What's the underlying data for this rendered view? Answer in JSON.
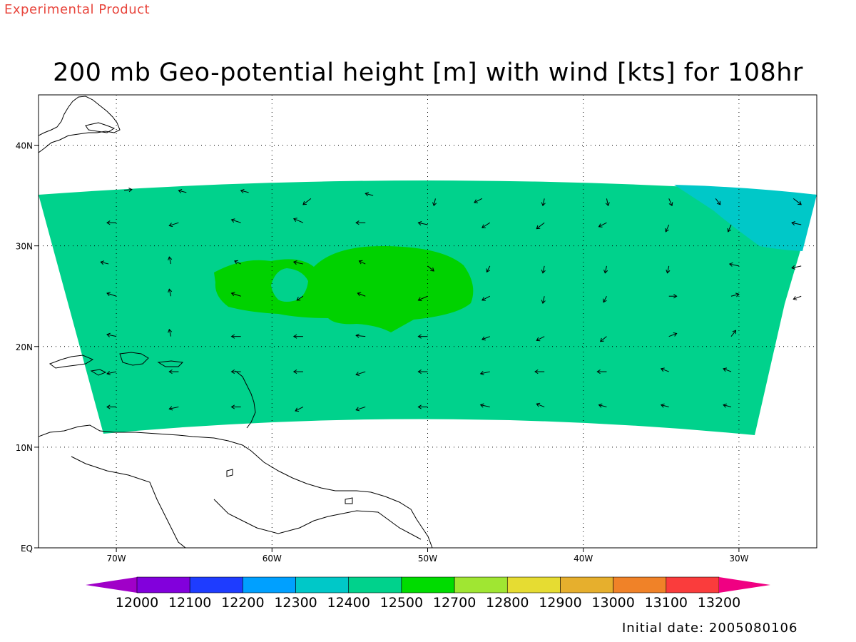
{
  "header": {
    "product_label": "Experimental Product",
    "title": "200 mb Geo-potential height [m] with wind [kts] for 108hr"
  },
  "footer": {
    "initial_date": "Initial date: 2005080106"
  },
  "map": {
    "lon_range": [
      -75,
      -25
    ],
    "lat_range": [
      0,
      45
    ],
    "lon_ticks": [
      {
        "value": -70,
        "label": "70W"
      },
      {
        "value": -60,
        "label": "60W"
      },
      {
        "value": -50,
        "label": "50W"
      },
      {
        "value": -40,
        "label": "40W"
      },
      {
        "value": -30,
        "label": "30W"
      }
    ],
    "lat_ticks": [
      {
        "value": 0,
        "label": "EQ"
      },
      {
        "value": 10,
        "label": "10N"
      },
      {
        "value": 20,
        "label": "20N"
      },
      {
        "value": 30,
        "label": "30N"
      },
      {
        "value": 40,
        "label": "40N"
      }
    ],
    "grid": true,
    "colors": {
      "domain_fill": "#00d28c",
      "high_fill": "#00d200",
      "ne_fill": "#00c8c8",
      "coast": "#000000"
    }
  },
  "colorbar": {
    "colors": [
      "#a000c8",
      "#8200dc",
      "#1e3cff",
      "#00a0ff",
      "#00c8c8",
      "#00d28c",
      "#00dc00",
      "#a0e632",
      "#e6dc32",
      "#e6af2d",
      "#f08228",
      "#fa3c3c",
      "#f00082"
    ],
    "labels": [
      "12000",
      "12100",
      "12200",
      "12300",
      "12400",
      "12500",
      "12700",
      "12800",
      "12900",
      "13000",
      "13100",
      "13200"
    ]
  },
  "wind": [
    [
      -69.5,
      35.5,
      -69,
      35.6
    ],
    [
      -65.5,
      35.3,
      -66,
      35.5
    ],
    [
      -61.5,
      35.3,
      -62,
      35.5
    ],
    [
      -57.5,
      34.7,
      -58,
      34.1
    ],
    [
      -53.5,
      35.0,
      -54,
      35.2
    ],
    [
      -49.5,
      34.7,
      -49.6,
      34.0
    ],
    [
      -46.5,
      34.7,
      -47,
      34.3
    ],
    [
      -42.5,
      34.7,
      -42.6,
      34.0
    ],
    [
      -38.5,
      34.7,
      -38.4,
      34.0
    ],
    [
      -34.5,
      34.7,
      -34.3,
      34.0
    ],
    [
      -31.5,
      34.7,
      -31.2,
      34.1
    ],
    [
      -26.5,
      34.7,
      -26,
      34.1
    ],
    [
      -70,
      32.3,
      -70.6,
      32.3
    ],
    [
      -66,
      32.3,
      -66.6,
      32.0
    ],
    [
      -62,
      32.3,
      -62.6,
      32.6
    ],
    [
      -58,
      32.3,
      -58.6,
      32.7
    ],
    [
      -54,
      32.3,
      -54.6,
      32.3
    ],
    [
      -50,
      32.1,
      -50.6,
      32.3
    ],
    [
      -46,
      32.3,
      -46.5,
      31.8
    ],
    [
      -42.5,
      32.3,
      -43,
      31.7
    ],
    [
      -38.5,
      32.3,
      -39,
      31.9
    ],
    [
      -34.5,
      32.1,
      -34.7,
      31.4
    ],
    [
      -30.5,
      32.1,
      -30.7,
      31.4
    ],
    [
      -26,
      32.1,
      -26.6,
      32.3
    ],
    [
      -70.5,
      28.2,
      -71,
      28.4
    ],
    [
      -66.5,
      28.2,
      -66.6,
      28.9
    ],
    [
      -62,
      28.2,
      -62.4,
      28.5
    ],
    [
      -58,
      28.2,
      -58.6,
      28.4
    ],
    [
      -54,
      28.2,
      -54.4,
      28.5
    ],
    [
      -50,
      28.0,
      -49.6,
      27.5
    ],
    [
      -46,
      28.0,
      -46.2,
      27.4
    ],
    [
      -42.5,
      28.0,
      -42.6,
      27.3
    ],
    [
      -38.5,
      28.0,
      -38.6,
      27.3
    ],
    [
      -34.5,
      28.0,
      -34.6,
      27.3
    ],
    [
      -30,
      28.0,
      -30.6,
      28.2
    ],
    [
      -26,
      28.0,
      -26.6,
      27.8
    ],
    [
      -70,
      25.0,
      -70.6,
      25.3
    ],
    [
      -66.5,
      25.0,
      -66.6,
      25.7
    ],
    [
      -62,
      25.0,
      -62.6,
      25.3
    ],
    [
      -58,
      25.0,
      -58.4,
      24.6
    ],
    [
      -54,
      25.0,
      -54.5,
      25.3
    ],
    [
      -50,
      25.0,
      -50.6,
      24.6
    ],
    [
      -46,
      25.0,
      -46.5,
      24.6
    ],
    [
      -42.5,
      25.0,
      -42.6,
      24.3
    ],
    [
      -38.5,
      25.0,
      -38.7,
      24.4
    ],
    [
      -34.5,
      25.0,
      -34,
      25.0
    ],
    [
      -30.5,
      25.0,
      -30,
      25.2
    ],
    [
      -26,
      25.0,
      -26.5,
      24.7
    ],
    [
      -70,
      21.0,
      -70.6,
      21.2
    ],
    [
      -66.5,
      21.0,
      -66.6,
      21.7
    ],
    [
      -62,
      21.0,
      -62.6,
      21.0
    ],
    [
      -58,
      21.0,
      -58.6,
      21.0
    ],
    [
      -54,
      21.0,
      -54.6,
      21.1
    ],
    [
      -50,
      21.0,
      -50.6,
      21.0
    ],
    [
      -46,
      21.0,
      -46.5,
      20.7
    ],
    [
      -42.5,
      21.0,
      -43,
      20.6
    ],
    [
      -38.5,
      21.0,
      -38.9,
      20.5
    ],
    [
      -34.5,
      21.0,
      -34,
      21.3
    ],
    [
      -30.5,
      21.0,
      -30.2,
      21.6
    ],
    [
      -70,
      17.5,
      -70.6,
      17.3
    ],
    [
      -66,
      17.5,
      -66.6,
      17.5
    ],
    [
      -62,
      17.5,
      -62.6,
      17.5
    ],
    [
      -58,
      17.5,
      -58.6,
      17.5
    ],
    [
      -54,
      17.5,
      -54.6,
      17.2
    ],
    [
      -50,
      17.5,
      -50.6,
      17.5
    ],
    [
      -46,
      17.5,
      -46.6,
      17.3
    ],
    [
      -42.5,
      17.5,
      -43.1,
      17.5
    ],
    [
      -38.5,
      17.5,
      -39.1,
      17.5
    ],
    [
      -34.5,
      17.5,
      -35,
      17.8
    ],
    [
      -30.5,
      17.5,
      -31,
      17.8
    ],
    [
      -70,
      14.0,
      -70.6,
      14.0
    ],
    [
      -66,
      14.0,
      -66.6,
      13.8
    ],
    [
      -62,
      14.0,
      -62.6,
      14.0
    ],
    [
      -58,
      14.0,
      -58.5,
      13.6
    ],
    [
      -54,
      14.0,
      -54.6,
      13.7
    ],
    [
      -50,
      14.0,
      -50.6,
      14.0
    ],
    [
      -46,
      14.0,
      -46.6,
      14.2
    ],
    [
      -42.5,
      14.0,
      -43,
      14.3
    ],
    [
      -38.5,
      14.0,
      -39,
      14.2
    ],
    [
      -34.5,
      14.0,
      -35,
      14.2
    ],
    [
      -30.5,
      14.0,
      -31,
      14.2
    ]
  ]
}
